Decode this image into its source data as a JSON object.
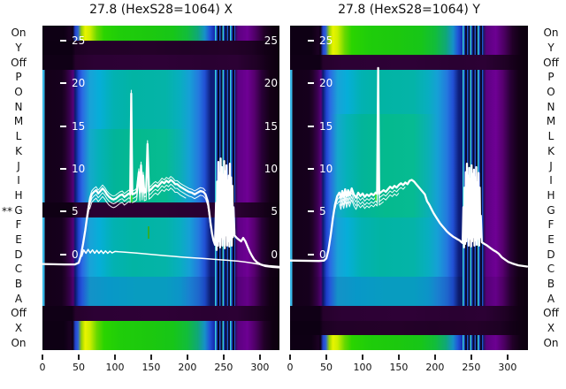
{
  "palette": {
    "background": "#ffffff",
    "curve": "#ffffff",
    "text": "#111111",
    "heat_yellow": "#e8f400",
    "heat_green": "#1fc913",
    "heat_teal": "#02b4a4",
    "heat_cyan": "#06aed8",
    "heat_blue": "#2144d2",
    "heat_navy": "#0d1d78",
    "heat_purple": "#6e0094",
    "heat_dark": "#120016"
  },
  "chart_data": {
    "type": "heatmap+line",
    "dead_row": "G",
    "dead_row_marker": "**",
    "x_ticks": [
      0,
      50,
      100,
      150,
      200,
      250,
      300
    ],
    "x_range": [
      0,
      327
    ],
    "y_ticks": [
      25,
      20,
      15,
      10,
      5,
      0
    ],
    "rows": [
      {
        "label": "On",
        "left": "bright",
        "right": "bright"
      },
      {
        "label": "Y",
        "left": "dark",
        "right": "bright"
      },
      {
        "label": "Off",
        "left": "dim",
        "right": "dim"
      },
      {
        "label": "P",
        "left": "body-a",
        "right": "body-a"
      },
      {
        "label": "O",
        "left": "body-a",
        "right": "body-a"
      },
      {
        "label": "N",
        "left": "body-a",
        "right": "body-a"
      },
      {
        "label": "M",
        "left": "body-a",
        "right": "body-b"
      },
      {
        "label": "L",
        "left": "body-b",
        "right": "body-b"
      },
      {
        "label": "K",
        "left": "body-b",
        "right": "body-b"
      },
      {
        "label": "J",
        "left": "body-b",
        "right": "body-b"
      },
      {
        "label": "I",
        "left": "body-b",
        "right": "body-b"
      },
      {
        "label": "H",
        "left": "body-b",
        "right": "body-b"
      },
      {
        "label": "G",
        "left": "dead",
        "right": "body-b"
      },
      {
        "label": "F",
        "left": "body-a",
        "right": "body-a"
      },
      {
        "label": "E",
        "left": "body-a",
        "right": "body-a"
      },
      {
        "label": "D",
        "left": "body-a",
        "right": "body-a"
      },
      {
        "label": "C",
        "left": "body-a",
        "right": "body-a"
      },
      {
        "label": "B",
        "left": "body-c",
        "right": "body-c"
      },
      {
        "label": "A",
        "left": "body-c",
        "right": "body-c"
      },
      {
        "label": "Off",
        "left": "dim",
        "right": "dim"
      },
      {
        "label": "X",
        "left": "bright",
        "right": "dark"
      },
      {
        "label": "On",
        "left": "bright",
        "right": "bright"
      }
    ],
    "panels": [
      {
        "title": "27.8 (HexS28=1064) X",
        "has_inner_right_ticks": true,
        "echoes": [
          {
            "dv": -0.5,
            "range": [
              62,
              232
            ]
          },
          {
            "dv": -0.95,
            "range": [
              64,
              200
            ]
          },
          {
            "dv": 0.4,
            "range": [
              62,
              225
            ]
          }
        ],
        "main": [
          [
            0,
            -1.15
          ],
          [
            30,
            -1.2
          ],
          [
            45,
            -1.2
          ],
          [
            50,
            -1
          ],
          [
            53,
            -0.2
          ],
          [
            56,
            1.2
          ],
          [
            59,
            2.8
          ],
          [
            62,
            4.6
          ],
          [
            65,
            6.2
          ],
          [
            68,
            7
          ],
          [
            71,
            7.3
          ],
          [
            74,
            7.5
          ],
          [
            77,
            7.1
          ],
          [
            80,
            7.4
          ],
          [
            83,
            7.7
          ],
          [
            86,
            7.4
          ],
          [
            89,
            7
          ],
          [
            92,
            6.7
          ],
          [
            95,
            6.5
          ],
          [
            98,
            6.4
          ],
          [
            101,
            6.5
          ],
          [
            104,
            6.7
          ],
          [
            107,
            6.9
          ],
          [
            110,
            7
          ],
          [
            113,
            6.7
          ],
          [
            116,
            6.9
          ],
          [
            119,
            7.1
          ],
          [
            121,
            7
          ],
          [
            122.5,
            18.8
          ],
          [
            124,
            7
          ],
          [
            127,
            7.1
          ],
          [
            130,
            7.3
          ],
          [
            133,
            9.6
          ],
          [
            134.5,
            7.2
          ],
          [
            136,
            10.4
          ],
          [
            137.5,
            7.3
          ],
          [
            139,
            9.2
          ],
          [
            140.5,
            7.2
          ],
          [
            143,
            7.3
          ],
          [
            145,
            12.9
          ],
          [
            147,
            7.4
          ],
          [
            150,
            7.6
          ],
          [
            153,
            7.9
          ],
          [
            156,
            8.1
          ],
          [
            159,
            7.9
          ],
          [
            162,
            8.2
          ],
          [
            165,
            8.5
          ],
          [
            168,
            8.3
          ],
          [
            171,
            8.6
          ],
          [
            174,
            8.4
          ],
          [
            177,
            8.7
          ],
          [
            180,
            8.5
          ],
          [
            183,
            8.2
          ],
          [
            186,
            8.2
          ],
          [
            190,
            7.9
          ],
          [
            194,
            7.7
          ],
          [
            198,
            7.5
          ],
          [
            202,
            7.3
          ],
          [
            206,
            7.2
          ],
          [
            210,
            7
          ],
          [
            214,
            7.2
          ],
          [
            218,
            7.4
          ],
          [
            222,
            7.3
          ],
          [
            225,
            7
          ],
          [
            228,
            6.2
          ],
          [
            230,
            5
          ],
          [
            232,
            3.6
          ],
          [
            234,
            2.4
          ],
          [
            236,
            1.6
          ],
          [
            238,
            1.1
          ],
          [
            239.5,
            6
          ],
          [
            240.3,
            0.5
          ],
          [
            241.1,
            8.5
          ],
          [
            241.9,
            1
          ],
          [
            242.7,
            10.8
          ],
          [
            243.5,
            1.5
          ],
          [
            244.3,
            9.5
          ],
          [
            245.1,
            0.8
          ],
          [
            245.9,
            11.2
          ],
          [
            246.7,
            2
          ],
          [
            247.5,
            10.2
          ],
          [
            248.3,
            1
          ],
          [
            249.1,
            9.3
          ],
          [
            249.9,
            1.8
          ],
          [
            250.7,
            10.9
          ],
          [
            251.5,
            0.7
          ],
          [
            252.3,
            9.7
          ],
          [
            253.1,
            2.2
          ],
          [
            253.9,
            10.4
          ],
          [
            254.7,
            1
          ],
          [
            255.5,
            8.6
          ],
          [
            256.3,
            1.5
          ],
          [
            257.1,
            9.2
          ],
          [
            257.9,
            0.9
          ],
          [
            258.7,
            10.6
          ],
          [
            259.5,
            1.7
          ],
          [
            260.3,
            9
          ],
          [
            261.1,
            1
          ],
          [
            261.9,
            8
          ],
          [
            262.7,
            2
          ],
          [
            263.5,
            5.5
          ],
          [
            265,
            2.2
          ],
          [
            268,
            1.9
          ],
          [
            271,
            1.7
          ],
          [
            274,
            1.5
          ],
          [
            277,
            1.9
          ],
          [
            280,
            1.5
          ],
          [
            283,
            0.9
          ],
          [
            286,
            0.3
          ],
          [
            289,
            -0.2
          ],
          [
            292,
            -0.6
          ],
          [
            296,
            -0.95
          ],
          [
            301,
            -1.2
          ],
          [
            308,
            -1.4
          ],
          [
            318,
            -1.5
          ],
          [
            327,
            -1.55
          ]
        ],
        "secondary": [
          [
            54,
            -0.3
          ],
          [
            57,
            0.5
          ],
          [
            60,
            0.1
          ],
          [
            63,
            0.55
          ],
          [
            66,
            0.15
          ],
          [
            69,
            0.5
          ],
          [
            72,
            0.1
          ],
          [
            75,
            0.45
          ],
          [
            78,
            0.1
          ],
          [
            81,
            0.42
          ],
          [
            84,
            0.08
          ],
          [
            87,
            0.38
          ],
          [
            90,
            0.1
          ],
          [
            93,
            0.35
          ],
          [
            96,
            0.15
          ],
          [
            100,
            0.32
          ],
          [
            105,
            0.28
          ],
          [
            112,
            0.25
          ],
          [
            120,
            0.2
          ],
          [
            130,
            0.12
          ],
          [
            140,
            0.05
          ],
          [
            150,
            -0.02
          ],
          [
            160,
            -0.1
          ],
          [
            170,
            -0.18
          ],
          [
            180,
            -0.25
          ],
          [
            190,
            -0.32
          ],
          [
            200,
            -0.38
          ],
          [
            210,
            -0.44
          ],
          [
            220,
            -0.5
          ],
          [
            230,
            -0.56
          ],
          [
            240,
            -0.62
          ],
          [
            250,
            -0.68
          ],
          [
            260,
            -0.75
          ],
          [
            270,
            -0.82
          ],
          [
            280,
            -0.92
          ],
          [
            290,
            -1.05
          ],
          [
            300,
            -1.2
          ],
          [
            312,
            -1.35
          ],
          [
            327,
            -1.45
          ]
        ]
      },
      {
        "title": "27.8 (HexS28=1064) Y",
        "has_inner_right_ticks": false,
        "echoes": [
          {
            "dv": -0.5,
            "range": [
              62,
              160
            ]
          },
          {
            "dv": -0.95,
            "range": [
              64,
              150
            ]
          },
          {
            "dv": -1.35,
            "range": [
              66,
              130
            ]
          }
        ],
        "main": [
          [
            0,
            -0.75
          ],
          [
            40,
            -0.8
          ],
          [
            47,
            -0.75
          ],
          [
            50,
            -0.5
          ],
          [
            53,
            0.5
          ],
          [
            56,
            2.2
          ],
          [
            59,
            4.2
          ],
          [
            62,
            5.8
          ],
          [
            65,
            6.8
          ],
          [
            68,
            7.2
          ],
          [
            70,
            6.6
          ],
          [
            72,
            7.4
          ],
          [
            74,
            6.7
          ],
          [
            76,
            7.6
          ],
          [
            78,
            6.8
          ],
          [
            80,
            7.5
          ],
          [
            82,
            6.9
          ],
          [
            85,
            7.7
          ],
          [
            88,
            7
          ],
          [
            91,
            6.6
          ],
          [
            94,
            7.2
          ],
          [
            97,
            6.8
          ],
          [
            100,
            7.1
          ],
          [
            103,
            6.7
          ],
          [
            106,
            7
          ],
          [
            109,
            6.8
          ],
          [
            112,
            7.1
          ],
          [
            115,
            6.9
          ],
          [
            118,
            7.2
          ],
          [
            120,
            7
          ],
          [
            121.5,
            21.8
          ],
          [
            123,
            7.1
          ],
          [
            126,
            7.3
          ],
          [
            129,
            7.5
          ],
          [
            132,
            7.3
          ],
          [
            135,
            7.6
          ],
          [
            138,
            7.9
          ],
          [
            141,
            7.7
          ],
          [
            144,
            8
          ],
          [
            147,
            7.8
          ],
          [
            150,
            8.1
          ],
          [
            153,
            8.3
          ],
          [
            156,
            8.1
          ],
          [
            159,
            8.4
          ],
          [
            162,
            8.2
          ],
          [
            165,
            8.6
          ],
          [
            168,
            8.7
          ],
          [
            171,
            8.5
          ],
          [
            174,
            8.2
          ],
          [
            177,
            7.9
          ],
          [
            180,
            7.6
          ],
          [
            183,
            7.3
          ],
          [
            186,
            7
          ],
          [
            189,
            6.2
          ],
          [
            192,
            5.8
          ],
          [
            195,
            5.3
          ],
          [
            198,
            4.8
          ],
          [
            201,
            4.4
          ],
          [
            204,
            4
          ],
          [
            207,
            3.6
          ],
          [
            210,
            3.3
          ],
          [
            213,
            3
          ],
          [
            216,
            2.7
          ],
          [
            219,
            2.45
          ],
          [
            222,
            2.25
          ],
          [
            225,
            2.05
          ],
          [
            228,
            1.9
          ],
          [
            231,
            1.75
          ],
          [
            234,
            1.6
          ],
          [
            236,
            1.45
          ],
          [
            238,
            1.3
          ],
          [
            239.2,
            5.5
          ],
          [
            240,
            0.8
          ],
          [
            240.8,
            7.8
          ],
          [
            241.6,
            1.2
          ],
          [
            242.4,
            9.6
          ],
          [
            243.2,
            1.5
          ],
          [
            244,
            10.6
          ],
          [
            244.8,
            2
          ],
          [
            245.6,
            9.2
          ],
          [
            246.4,
            1
          ],
          [
            247.2,
            10.1
          ],
          [
            248,
            1.8
          ],
          [
            248.8,
            8.8
          ],
          [
            249.6,
            0.9
          ],
          [
            250.4,
            10.4
          ],
          [
            251.2,
            1.5
          ],
          [
            252,
            9.4
          ],
          [
            252.8,
            2
          ],
          [
            253.6,
            9.9
          ],
          [
            254.4,
            1
          ],
          [
            255.2,
            9
          ],
          [
            256,
            1.6
          ],
          [
            256.8,
            10.2
          ],
          [
            257.6,
            1.1
          ],
          [
            258.4,
            8.4
          ],
          [
            259.2,
            1.8
          ],
          [
            260,
            9.5
          ],
          [
            260.8,
            1
          ],
          [
            261.6,
            7.8
          ],
          [
            262.4,
            2
          ],
          [
            263.2,
            4.5
          ],
          [
            264.5,
            1.4
          ],
          [
            268,
            1.2
          ],
          [
            272,
            1
          ],
          [
            276,
            0.75
          ],
          [
            280,
            0.5
          ],
          [
            284,
            0.3
          ],
          [
            288,
            0.05
          ],
          [
            292,
            -0.35
          ],
          [
            296,
            -0.6
          ],
          [
            301,
            -0.9
          ],
          [
            307,
            -1.1
          ],
          [
            315,
            -1.3
          ],
          [
            327,
            -1.45
          ]
        ],
        "secondary": []
      }
    ],
    "artifacts": [
      {
        "x": 148,
        "y": 221,
        "w": 2,
        "h": 8,
        "color": "#3ddf3d"
      },
      {
        "x": 167,
        "y": 256,
        "w": 2,
        "h": 14,
        "color": "#2fae2f"
      },
      {
        "x": 424,
        "y": 220,
        "w": 2,
        "h": 7,
        "color": "#3ddf3d"
      }
    ]
  }
}
